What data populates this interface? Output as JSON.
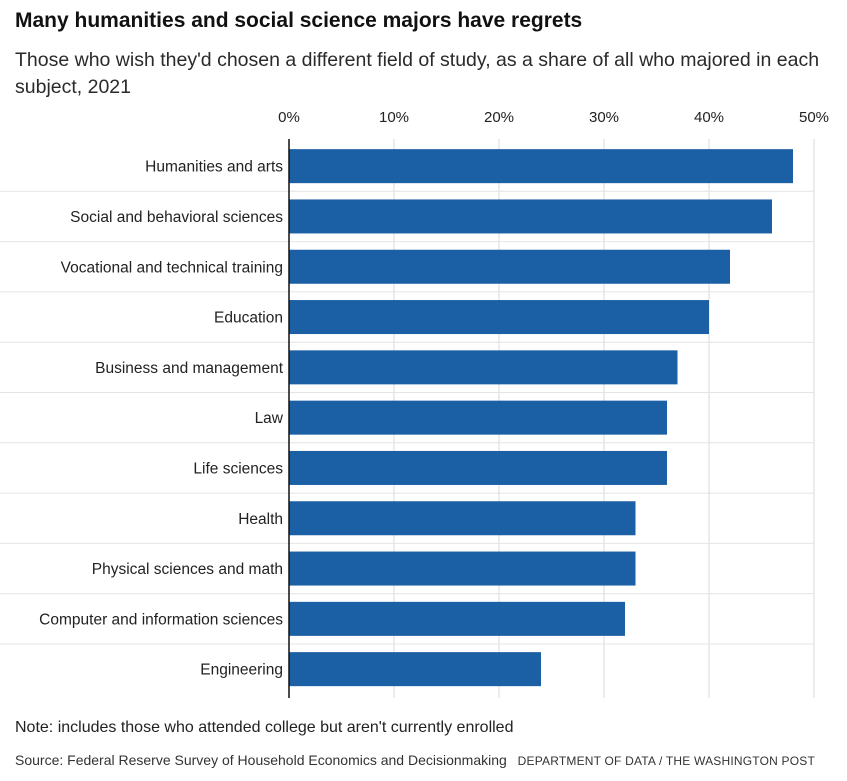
{
  "header": {
    "title": "Many humanities and social science majors have regrets",
    "subtitle": "Those who wish they'd chosen a different field of study, as a share of all who majored in each subject, 2021"
  },
  "footer": {
    "note": "Note: includes those who attended college but aren't currently enrolled",
    "source": "Source: Federal Reserve Survey of Household Economics and Decisionmaking",
    "credit": "DEPARTMENT OF DATA / THE WASHINGTON POST"
  },
  "colors": {
    "bar": "#1b5fa5",
    "gridline": "#d9d9d9",
    "axis": "#111111"
  },
  "chart_data": {
    "type": "bar",
    "orientation": "horizontal",
    "title": "Many humanities and social science majors have regrets",
    "subtitle": "Those who wish they'd chosen a different field of study, as a share of all who majored in each subject, 2021",
    "xlabel": "",
    "ylabel": "",
    "xlim": [
      0,
      50
    ],
    "x_ticks": [
      0,
      10,
      20,
      30,
      40,
      50
    ],
    "x_tick_labels": [
      "0%",
      "10%",
      "20%",
      "30%",
      "40%",
      "50%"
    ],
    "x_axis_position": "top",
    "grid": true,
    "legend": "none",
    "categories": [
      "Humanities and arts",
      "Social and behavioral sciences",
      "Vocational and technical training",
      "Education",
      "Business and management",
      "Law",
      "Life sciences",
      "Health",
      "Physical sciences and math",
      "Computer and information sciences",
      "Engineering"
    ],
    "values": [
      48,
      46,
      42,
      40,
      37,
      36,
      36,
      33,
      33,
      32,
      24
    ]
  }
}
